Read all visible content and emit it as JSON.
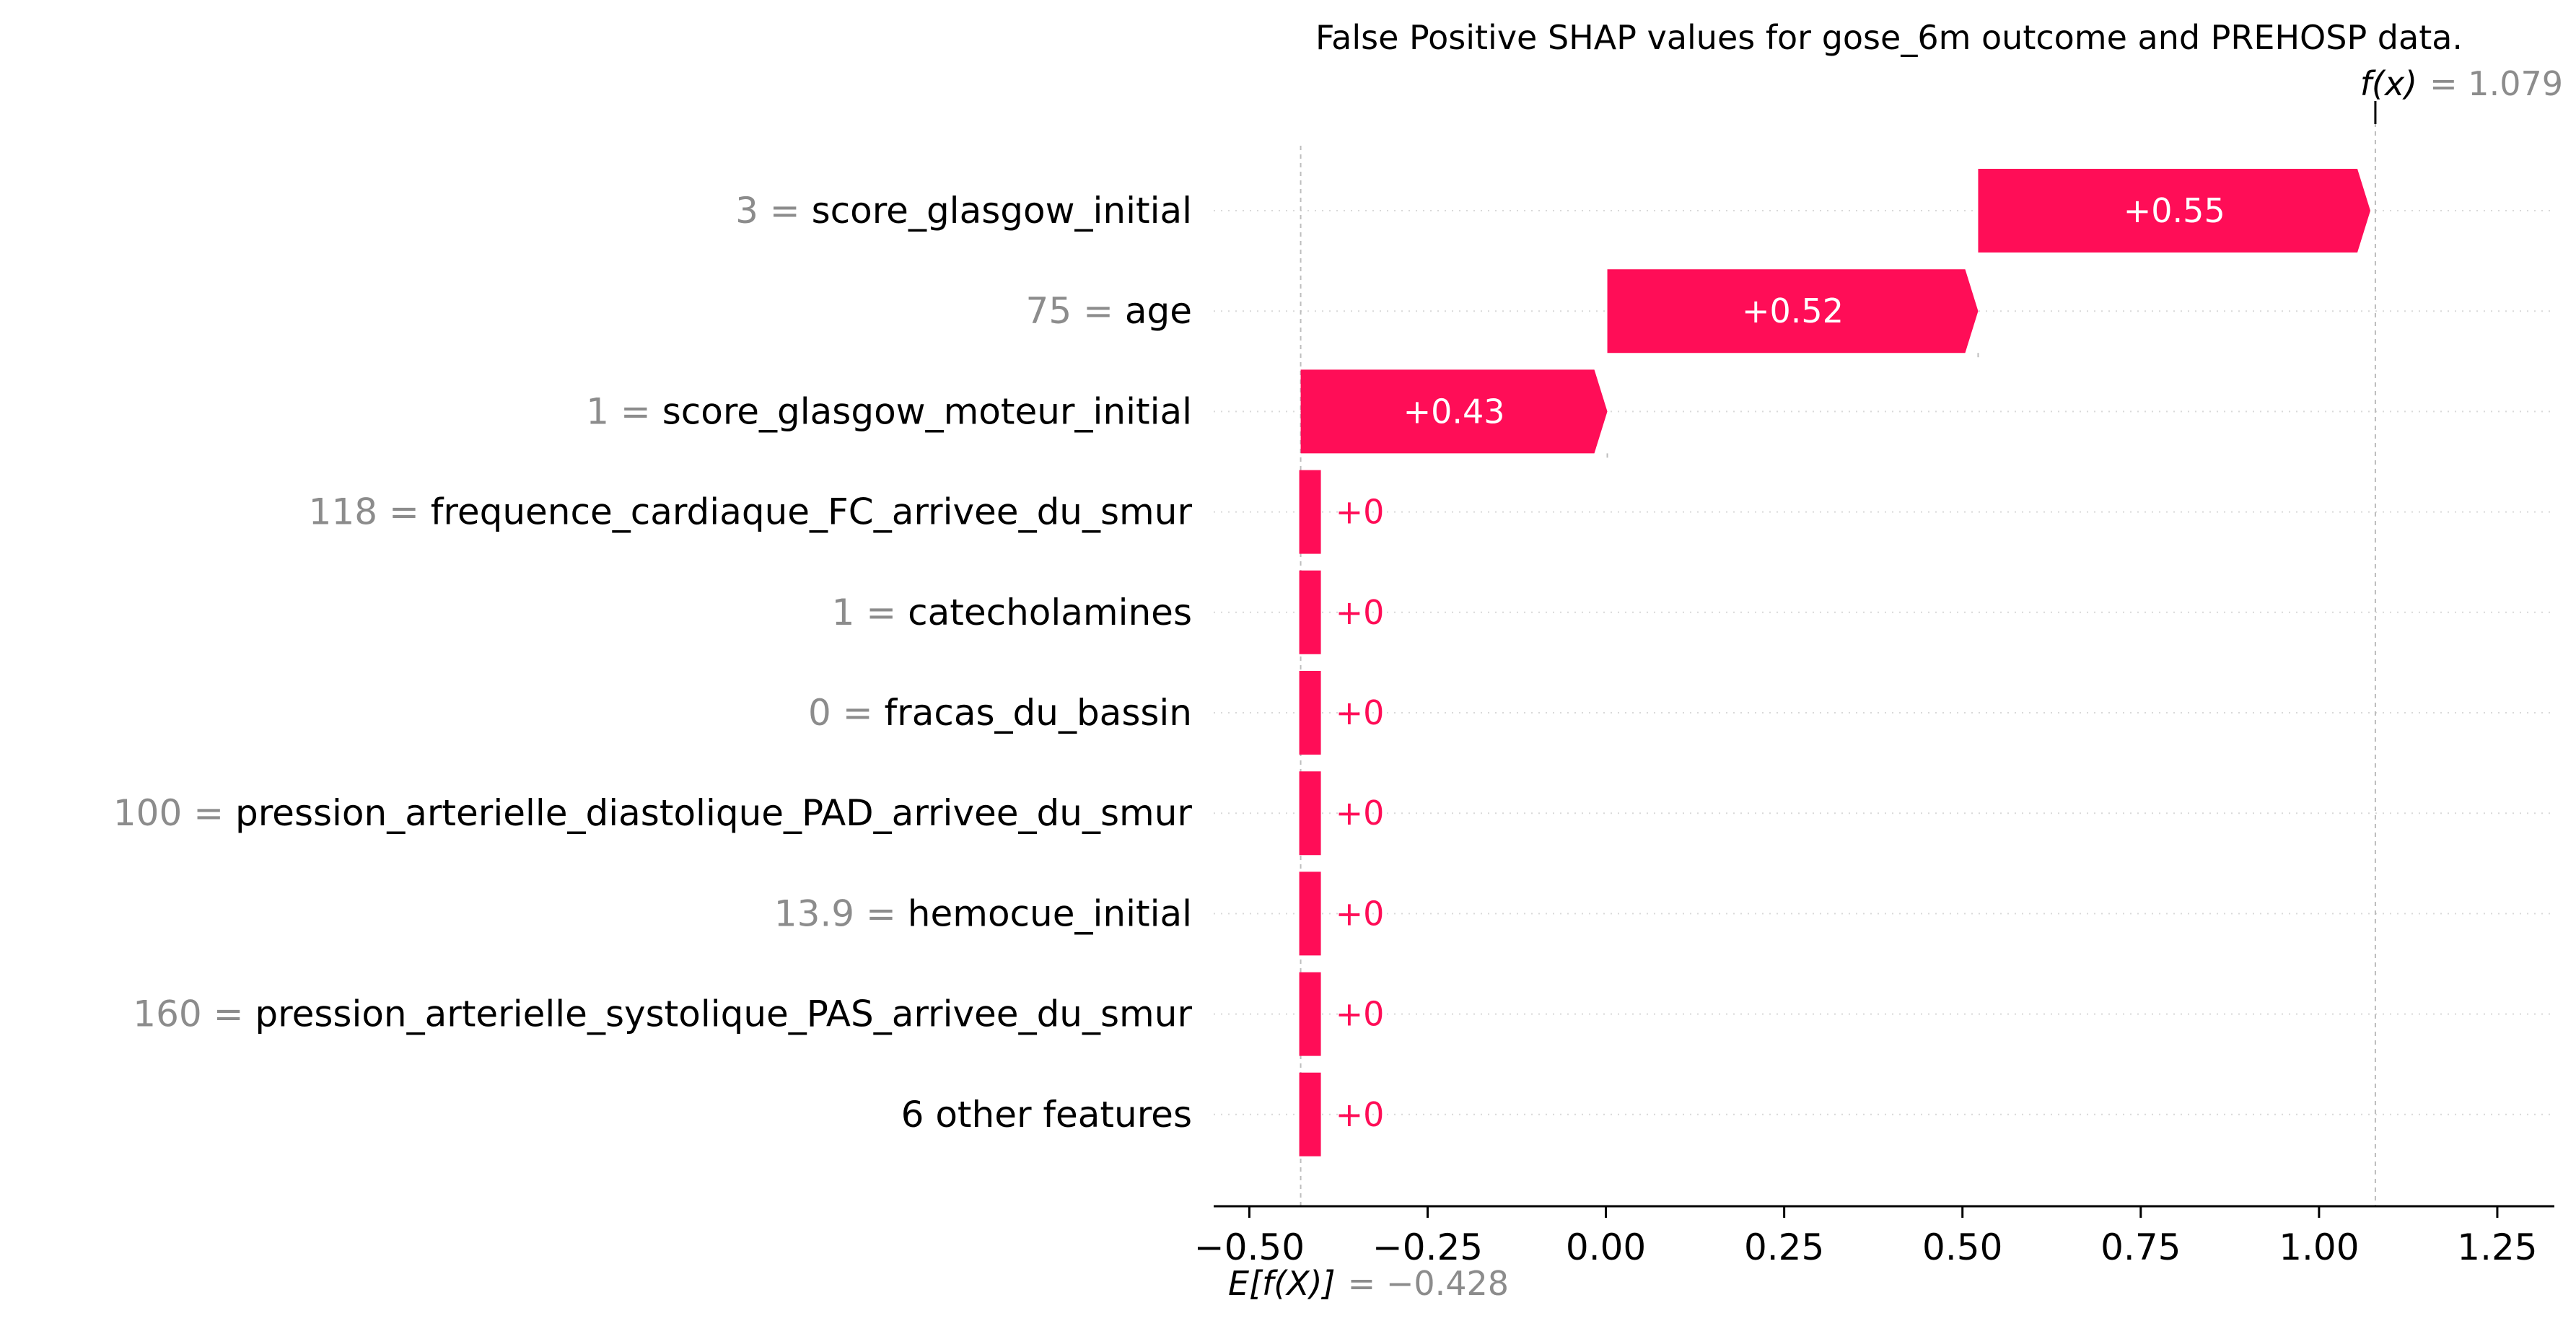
{
  "chart_data": {
    "type": "bar",
    "title": "False Positive SHAP values for gose_6m outcome and PREHOSP data.",
    "xlabel": "",
    "ylabel": "",
    "xlim": [
      -0.55,
      1.33
    ],
    "xticks": [
      -0.5,
      -0.25,
      0.0,
      0.25,
      0.5,
      0.75,
      1.0,
      1.25
    ],
    "xtick_labels": [
      "−0.50",
      "−0.25",
      "0.00",
      "0.25",
      "0.50",
      "0.75",
      "1.00",
      "1.25"
    ],
    "base_value": -0.428,
    "base_label": "E[f(X)]",
    "base_value_label": "= −0.428",
    "output_value": 1.079,
    "output_label": "f(x)",
    "output_value_label": "= 1.079",
    "positive_color": "#ff0d57",
    "grid": "horizontal dotted",
    "rows": [
      {
        "value_text": "3",
        "feature": "score_glasgow_initial",
        "shap": 0.55,
        "label": "+0.55"
      },
      {
        "value_text": "75",
        "feature": "age",
        "shap": 0.52,
        "label": "+0.52"
      },
      {
        "value_text": "1",
        "feature": "score_glasgow_moteur_initial",
        "shap": 0.43,
        "label": "+0.43"
      },
      {
        "value_text": "118",
        "feature": "frequence_cardiaque_FC_arrivee_du_smur",
        "shap": 0.0,
        "label": "+0"
      },
      {
        "value_text": "1",
        "feature": "catecholamines",
        "shap": 0.0,
        "label": "+0"
      },
      {
        "value_text": "0",
        "feature": "fracas_du_bassin",
        "shap": 0.0,
        "label": "+0"
      },
      {
        "value_text": "100",
        "feature": "pression_arterielle_diastolique_PAD_arrivee_du_smur",
        "shap": 0.0,
        "label": "+0"
      },
      {
        "value_text": "13.9",
        "feature": "hemocue_initial",
        "shap": 0.0,
        "label": "+0"
      },
      {
        "value_text": "160",
        "feature": "pression_arterielle_systolique_PAS_arrivee_du_smur",
        "shap": 0.0,
        "label": "+0"
      },
      {
        "value_text": "",
        "feature": "6 other features",
        "shap": 0.0,
        "label": "+0"
      }
    ]
  }
}
